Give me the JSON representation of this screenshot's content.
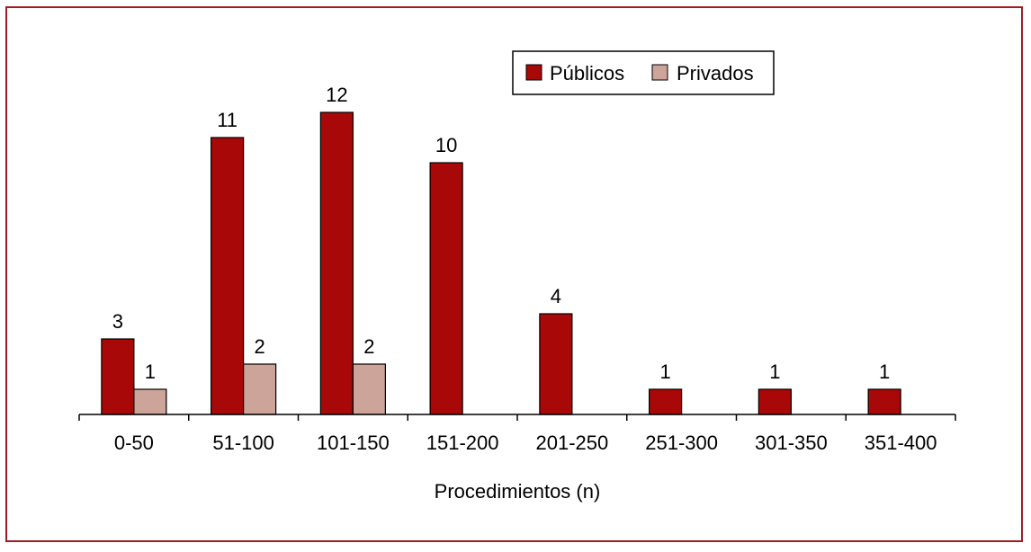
{
  "chart_data": {
    "type": "bar",
    "categories": [
      "0-50",
      "51-100",
      "101-150",
      "151-200",
      "201-250",
      "251-300",
      "301-350",
      "351-400"
    ],
    "series": [
      {
        "name": "Públicos",
        "values": [
          3,
          11,
          12,
          10,
          4,
          1,
          1,
          1
        ],
        "color": "#a80808"
      },
      {
        "name": "Privados",
        "values": [
          1,
          2,
          2,
          0,
          0,
          0,
          0,
          0
        ],
        "color": "#cca49a"
      }
    ],
    "title": "",
    "xlabel": "Procedimientos (n)",
    "ylabel": "",
    "ylim": [
      0,
      12
    ],
    "grid": false,
    "legend": "top-right",
    "frame_color": "#a01c22"
  }
}
